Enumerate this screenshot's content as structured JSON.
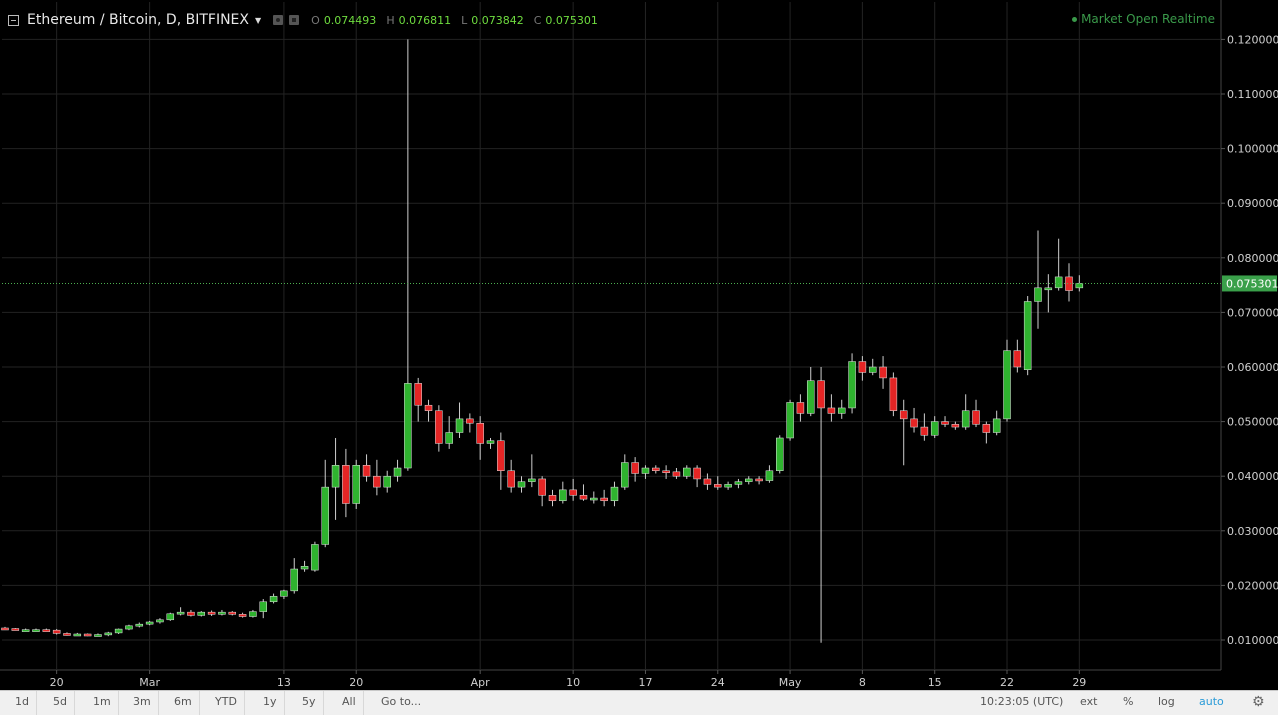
{
  "header": {
    "symbol": "Ethereum / Bitcoin, D, BITFINEX",
    "ohlc": {
      "open_label": "O",
      "open": "0.074493",
      "high_label": "H",
      "high": "0.076811",
      "low_label": "L",
      "low": "0.073842",
      "close_label": "C",
      "close": "0.075301"
    },
    "market_status": "Market Open Realtime"
  },
  "last_price_label": "0.075301",
  "toolbar": {
    "ranges": [
      "1d",
      "5d",
      "1m",
      "3m",
      "6m",
      "YTD",
      "1y",
      "5y",
      "All"
    ],
    "goto_label": "Go to...",
    "time": "10:23:05 (UTC)",
    "ext_label": "ext",
    "percent_label": "%",
    "log_label": "log",
    "auto_label": "auto",
    "settings_icon": "gear-icon"
  },
  "colors": {
    "up": "#2fb32f",
    "down": "#e52525",
    "background": "#000000",
    "grid": "#232323",
    "last_price_line": "#4caf50"
  },
  "chart_data": {
    "type": "candlestick",
    "title": "Ethereum / Bitcoin, D, BITFINEX",
    "ylim": [
      0.005,
      0.1215
    ],
    "y_ticks": [
      0.12,
      0.11,
      0.1,
      0.09,
      0.08,
      0.07,
      0.06,
      0.05,
      0.04,
      0.03,
      0.02,
      0.01
    ],
    "y_tick_labels": [
      "0.120000",
      "0.110000",
      "0.100000",
      "0.090000",
      "0.080000",
      "0.070000",
      "0.060000",
      "0.050000",
      "0.040000",
      "0.030000",
      "0.020000",
      "0.010000"
    ],
    "x_ticks": [
      {
        "label": "20",
        "index": 5
      },
      {
        "label": "Mar",
        "index": 14
      },
      {
        "label": "13",
        "index": 27
      },
      {
        "label": "20",
        "index": 34
      },
      {
        "label": "Apr",
        "index": 46
      },
      {
        "label": "10",
        "index": 55
      },
      {
        "label": "17",
        "index": 62
      },
      {
        "label": "24",
        "index": 69
      },
      {
        "label": "May",
        "index": 76
      },
      {
        "label": "8",
        "index": 83
      },
      {
        "label": "15",
        "index": 90
      },
      {
        "label": "22",
        "index": 97
      },
      {
        "label": "29",
        "index": 104
      }
    ],
    "last_price": 0.075301,
    "grid": true,
    "candles": [
      [
        0.0122,
        0.0124,
        0.012,
        0.0121
      ],
      [
        0.0121,
        0.0122,
        0.0118,
        0.0119
      ],
      [
        0.0119,
        0.0121,
        0.0117,
        0.0119
      ],
      [
        0.0119,
        0.0121,
        0.0117,
        0.0119
      ],
      [
        0.0119,
        0.0121,
        0.0117,
        0.0118
      ],
      [
        0.0118,
        0.012,
        0.011,
        0.0112
      ],
      [
        0.0112,
        0.0114,
        0.0108,
        0.011
      ],
      [
        0.011,
        0.0113,
        0.0108,
        0.0111
      ],
      [
        0.0111,
        0.0112,
        0.0107,
        0.0109
      ],
      [
        0.0109,
        0.0112,
        0.0107,
        0.011
      ],
      [
        0.011,
        0.0115,
        0.0107,
        0.0113
      ],
      [
        0.0113,
        0.0121,
        0.0111,
        0.012
      ],
      [
        0.012,
        0.0128,
        0.0118,
        0.0126
      ],
      [
        0.0126,
        0.0132,
        0.0123,
        0.0129
      ],
      [
        0.0129,
        0.0135,
        0.0127,
        0.0133
      ],
      [
        0.0133,
        0.014,
        0.013,
        0.0137
      ],
      [
        0.0137,
        0.015,
        0.0135,
        0.0148
      ],
      [
        0.0148,
        0.016,
        0.0145,
        0.0151
      ],
      [
        0.0151,
        0.0155,
        0.0143,
        0.0145
      ],
      [
        0.0145,
        0.0153,
        0.0143,
        0.0151
      ],
      [
        0.0151,
        0.0154,
        0.0144,
        0.0147
      ],
      [
        0.0147,
        0.0155,
        0.0145,
        0.0151
      ],
      [
        0.0151,
        0.0153,
        0.0145,
        0.0147
      ],
      [
        0.0147,
        0.015,
        0.0141,
        0.0143
      ],
      [
        0.0143,
        0.0155,
        0.0141,
        0.0152
      ],
      [
        0.0152,
        0.0175,
        0.014,
        0.017
      ],
      [
        0.017,
        0.0185,
        0.0167,
        0.018
      ],
      [
        0.018,
        0.0192,
        0.0175,
        0.019
      ],
      [
        0.019,
        0.025,
        0.0185,
        0.023
      ],
      [
        0.023,
        0.0245,
        0.0225,
        0.0235
      ],
      [
        0.0228,
        0.028,
        0.0225,
        0.0275
      ],
      [
        0.0275,
        0.043,
        0.027,
        0.038
      ],
      [
        0.038,
        0.047,
        0.032,
        0.042
      ],
      [
        0.042,
        0.045,
        0.0325,
        0.035
      ],
      [
        0.035,
        0.043,
        0.034,
        0.042
      ],
      [
        0.042,
        0.044,
        0.039,
        0.04
      ],
      [
        0.04,
        0.043,
        0.0365,
        0.038
      ],
      [
        0.038,
        0.041,
        0.037,
        0.04
      ],
      [
        0.04,
        0.043,
        0.039,
        0.0415
      ],
      [
        0.0415,
        0.12,
        0.041,
        0.057
      ],
      [
        0.057,
        0.058,
        0.05,
        0.053
      ],
      [
        0.053,
        0.054,
        0.05,
        0.052
      ],
      [
        0.052,
        0.053,
        0.0445,
        0.046
      ],
      [
        0.046,
        0.051,
        0.045,
        0.048
      ],
      [
        0.048,
        0.0535,
        0.047,
        0.0505
      ],
      [
        0.0505,
        0.0515,
        0.048,
        0.0497
      ],
      [
        0.0497,
        0.051,
        0.043,
        0.046
      ],
      [
        0.046,
        0.047,
        0.045,
        0.0465
      ],
      [
        0.0465,
        0.048,
        0.0375,
        0.041
      ],
      [
        0.041,
        0.043,
        0.037,
        0.038
      ],
      [
        0.038,
        0.04,
        0.037,
        0.039
      ],
      [
        0.039,
        0.044,
        0.038,
        0.0395
      ],
      [
        0.0395,
        0.04,
        0.0345,
        0.0365
      ],
      [
        0.0365,
        0.0375,
        0.0345,
        0.0355
      ],
      [
        0.0355,
        0.039,
        0.035,
        0.0375
      ],
      [
        0.0375,
        0.0395,
        0.0355,
        0.0365
      ],
      [
        0.0365,
        0.0385,
        0.0355,
        0.0358
      ],
      [
        0.0358,
        0.0372,
        0.035,
        0.036
      ],
      [
        0.036,
        0.0375,
        0.0345,
        0.0355
      ],
      [
        0.0355,
        0.039,
        0.0345,
        0.038
      ],
      [
        0.038,
        0.044,
        0.0375,
        0.0425
      ],
      [
        0.0425,
        0.0435,
        0.039,
        0.0405
      ],
      [
        0.0405,
        0.042,
        0.0395,
        0.0415
      ],
      [
        0.0415,
        0.042,
        0.0405,
        0.041
      ],
      [
        0.041,
        0.042,
        0.0395,
        0.0408
      ],
      [
        0.0408,
        0.0415,
        0.0395,
        0.04
      ],
      [
        0.04,
        0.042,
        0.0395,
        0.0415
      ],
      [
        0.0415,
        0.042,
        0.038,
        0.0395
      ],
      [
        0.0395,
        0.0405,
        0.0375,
        0.0385
      ],
      [
        0.0385,
        0.04,
        0.0375,
        0.038
      ],
      [
        0.038,
        0.039,
        0.0375,
        0.0385
      ],
      [
        0.0385,
        0.0395,
        0.0378,
        0.039
      ],
      [
        0.039,
        0.04,
        0.0385,
        0.0395
      ],
      [
        0.0395,
        0.04,
        0.0385,
        0.0392
      ],
      [
        0.0392,
        0.042,
        0.0388,
        0.041
      ],
      [
        0.041,
        0.0475,
        0.0405,
        0.047
      ],
      [
        0.047,
        0.054,
        0.0465,
        0.0535
      ],
      [
        0.0535,
        0.055,
        0.05,
        0.0515
      ],
      [
        0.0515,
        0.06,
        0.051,
        0.0575
      ],
      [
        0.0575,
        0.06,
        0.0095,
        0.0525
      ],
      [
        0.0525,
        0.055,
        0.05,
        0.0515
      ],
      [
        0.0515,
        0.054,
        0.0505,
        0.0525
      ],
      [
        0.0525,
        0.0625,
        0.0515,
        0.061
      ],
      [
        0.061,
        0.062,
        0.0575,
        0.059
      ],
      [
        0.059,
        0.0615,
        0.0585,
        0.06
      ],
      [
        0.06,
        0.062,
        0.056,
        0.058
      ],
      [
        0.058,
        0.059,
        0.051,
        0.052
      ],
      [
        0.052,
        0.054,
        0.042,
        0.0505
      ],
      [
        0.0505,
        0.0525,
        0.048,
        0.049
      ],
      [
        0.049,
        0.0515,
        0.0465,
        0.0475
      ],
      [
        0.0475,
        0.051,
        0.047,
        0.05
      ],
      [
        0.05,
        0.051,
        0.049,
        0.0495
      ],
      [
        0.0495,
        0.05,
        0.0485,
        0.049
      ],
      [
        0.049,
        0.055,
        0.0485,
        0.052
      ],
      [
        0.052,
        0.054,
        0.049,
        0.0495
      ],
      [
        0.0495,
        0.05,
        0.046,
        0.048
      ],
      [
        0.048,
        0.052,
        0.0475,
        0.0505
      ],
      [
        0.0505,
        0.065,
        0.05,
        0.063
      ],
      [
        0.063,
        0.065,
        0.059,
        0.06
      ],
      [
        0.0595,
        0.073,
        0.0585,
        0.072
      ],
      [
        0.072,
        0.085,
        0.067,
        0.0745
      ],
      [
        0.0745,
        0.077,
        0.07,
        0.0745
      ],
      [
        0.0745,
        0.0835,
        0.074,
        0.0765
      ],
      [
        0.0765,
        0.079,
        0.072,
        0.074
      ],
      [
        0.074493,
        0.076811,
        0.073842,
        0.075301
      ]
    ]
  }
}
